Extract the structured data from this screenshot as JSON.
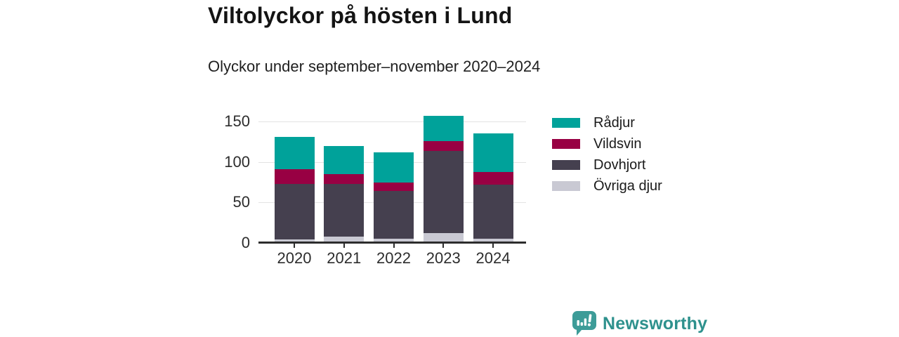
{
  "title": "Viltolyckor på hösten i Lund",
  "subtitle": "Olyckor under september–november 2020–2024",
  "chart_data": {
    "type": "bar",
    "stacked": true,
    "title": "Viltolyckor på hösten i Lund",
    "subtitle": "Olyckor under september–november 2020–2024",
    "categories": [
      "2020",
      "2021",
      "2022",
      "2023",
      "2024"
    ],
    "series": [
      {
        "name": "Övriga djur",
        "color": "#c9c9d3",
        "values": [
          4,
          8,
          5,
          12,
          5
        ]
      },
      {
        "name": "Dovhjort",
        "color": "#45404f",
        "values": [
          69,
          65,
          59,
          102,
          67
        ]
      },
      {
        "name": "Vildsvin",
        "color": "#980043",
        "values": [
          18,
          12,
          11,
          12,
          16
        ]
      },
      {
        "name": "Rådjur",
        "color": "#00a29a",
        "values": [
          40,
          35,
          37,
          31,
          47
        ]
      }
    ],
    "totals": [
      131,
      120,
      112,
      157,
      135
    ],
    "y_ticks": [
      0,
      50,
      100,
      150
    ],
    "ylim": [
      0,
      170
    ],
    "xlabel": "",
    "ylabel": "",
    "grid": true,
    "legend_position": "right",
    "legend_order_top_to_bottom": [
      "Rådjur",
      "Vildsvin",
      "Dovhjort",
      "Övriga djur"
    ]
  },
  "branding": {
    "logo_text": "Newsworthy",
    "logo_icon": "newsworthy-speech-bubble-bars-icon",
    "logo_text_color": "#2e918d",
    "logo_icon_color": "#3d9c98"
  },
  "colors": {
    "background": "#ffffff",
    "axis": "#2d2d2d",
    "gridline": "#e3e3e3",
    "title_text": "#141414",
    "radjur_teal": "#00a29a",
    "vildsvin_maroon": "#980043",
    "dovhjort_darkgray": "#45404f",
    "ovriga_lightgray": "#c9c9d3"
  }
}
